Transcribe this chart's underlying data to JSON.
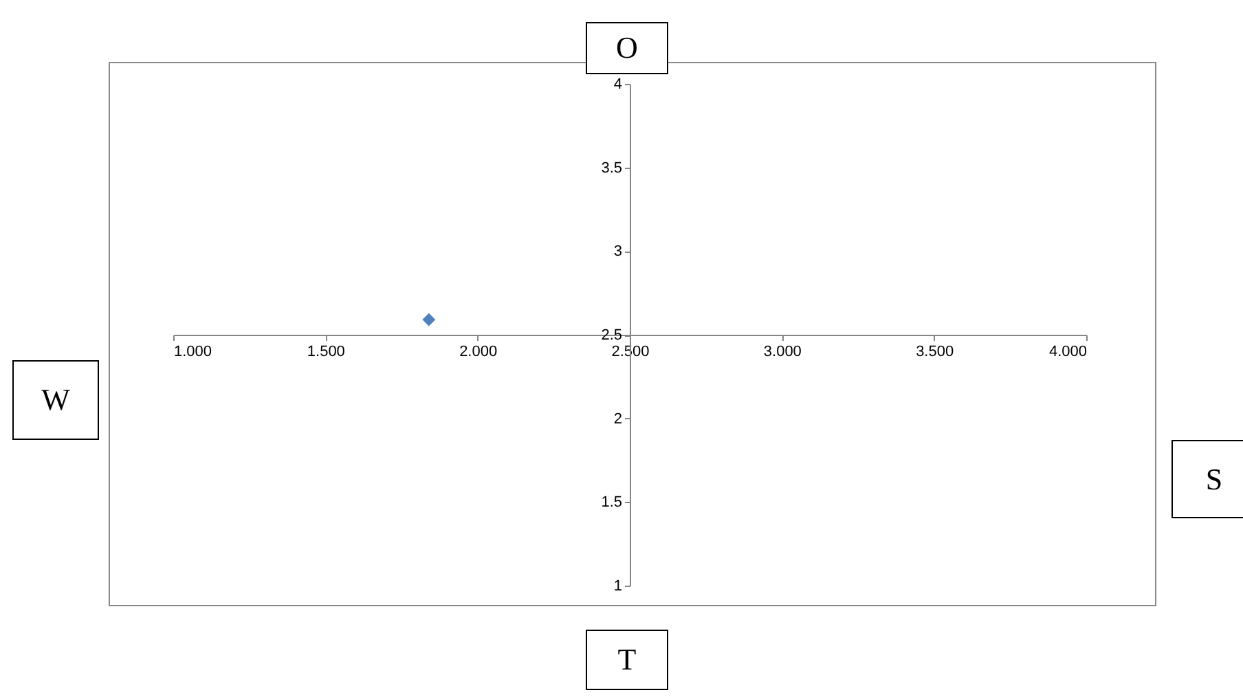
{
  "chart_data": {
    "type": "scatter",
    "x": [
      1.84
    ],
    "values": [
      2.59
    ],
    "color": "#4f81bd",
    "marker": "diamond",
    "xlim": [
      1,
      4
    ],
    "xticks": [
      {
        "value": 1,
        "label": "1.000"
      },
      {
        "value": 1.5,
        "label": "1.500"
      },
      {
        "value": 2,
        "label": "2.000"
      },
      {
        "value": 2.5,
        "label": "2.500"
      },
      {
        "value": 3,
        "label": "3.000"
      },
      {
        "value": 3.5,
        "label": "3.500"
      },
      {
        "value": 4,
        "label": "4.000"
      }
    ],
    "ylim": [
      1,
      4
    ],
    "yticks": [
      1,
      1.5,
      2,
      2.5,
      3,
      3.5,
      4
    ],
    "grid": false,
    "legend": false,
    "annotations": [
      "O",
      "W",
      "S",
      "T"
    ]
  }
}
